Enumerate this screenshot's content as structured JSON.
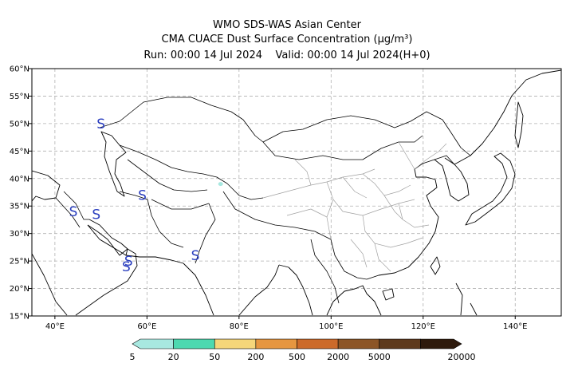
{
  "header": {
    "line1": "WMO SDS-WAS Asian Center",
    "line2": "CMA CUACE Dust Surface Concentration (μg/m³)",
    "line3": "Run: 00:00 14 Jul 2024    Valid: 00:00 14 Jul 2024(H+0)"
  },
  "map": {
    "lon_range": [
      35,
      150
    ],
    "lat_range": [
      15,
      60
    ],
    "lon_ticks": [
      "40°E",
      "60°E",
      "80°E",
      "100°E",
      "120°E",
      "140°E"
    ],
    "lat_ticks": [
      "60°N",
      "55°N",
      "50°N",
      "45°N",
      "40°N",
      "35°N",
      "30°N",
      "25°N",
      "20°N",
      "15°N"
    ],
    "grid": true,
    "storm_symbol": "S",
    "storm_markers": [
      {
        "lon": 50,
        "lat": 50
      },
      {
        "lon": 59,
        "lat": 37
      },
      {
        "lon": 44,
        "lat": 34
      },
      {
        "lon": 49,
        "lat": 33.5
      },
      {
        "lon": 56,
        "lat": 25
      },
      {
        "lon": 55.5,
        "lat": 24
      },
      {
        "lon": 70.5,
        "lat": 26
      }
    ],
    "dust_patches": [
      {
        "lon": 76,
        "lat": 39,
        "color": "#a8e8e0"
      }
    ]
  },
  "colorbar": {
    "labels": [
      "5",
      "20",
      "50",
      "200",
      "500",
      "2000",
      "5000",
      "20000"
    ],
    "colors": [
      "#a8e8e0",
      "#4dd9b0",
      "#f5d67a",
      "#e69640",
      "#cc6a2a",
      "#8c5526",
      "#5e3a1c",
      "#2e1a0c"
    ]
  },
  "colors": {
    "coastline": "#000000",
    "province_border": "#a0a0a0",
    "marker": "#2b3fbf"
  }
}
